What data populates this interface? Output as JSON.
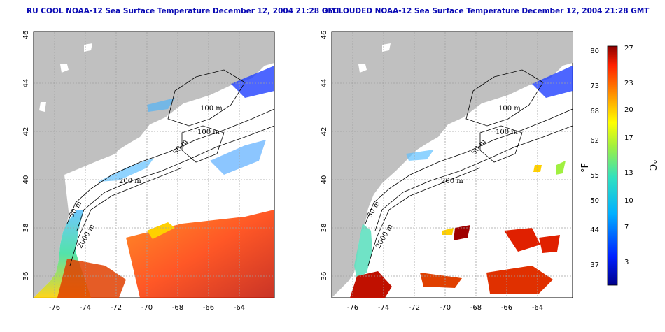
{
  "left_panel": {
    "title": "RU COOL NOAA-12 Sea Surface Temperature December 12, 2004 21:28 GMT",
    "x_ticks": [
      "-76",
      "-74",
      "-72",
      "-70",
      "-68",
      "-66",
      "-64"
    ],
    "y_ticks": [
      "36",
      "38",
      "40",
      "42",
      "44",
      "46"
    ],
    "contour_labels": [
      "100 m",
      "100 m",
      "50 m",
      "200 m",
      "50 m",
      "2000 m"
    ]
  },
  "right_panel": {
    "title": "DECLOUDED NOAA-12 Sea Surface Temperature December 12, 2004 21:28 GMT",
    "x_ticks": [
      "-76",
      "-74",
      "-72",
      "-70",
      "-68",
      "-66",
      "-64"
    ],
    "y_ticks": [
      "36",
      "38",
      "40",
      "42",
      "44",
      "46"
    ],
    "contour_labels": [
      "100 m",
      "100 m",
      "50 m",
      "200 m",
      "50 m",
      "2000 m"
    ]
  },
  "colorbar": {
    "f_ticks": [
      "80",
      "73",
      "68",
      "62",
      "55",
      "50",
      "44",
      "37"
    ],
    "c_ticks": [
      "27",
      "23",
      "20",
      "17",
      "13",
      "10",
      "7",
      "3"
    ],
    "f_label": "°F",
    "c_label": "°C"
  },
  "colors": {
    "land": "#c0c0c0",
    "grid": "#a0a0a0",
    "title": "#0a0ab4"
  }
}
